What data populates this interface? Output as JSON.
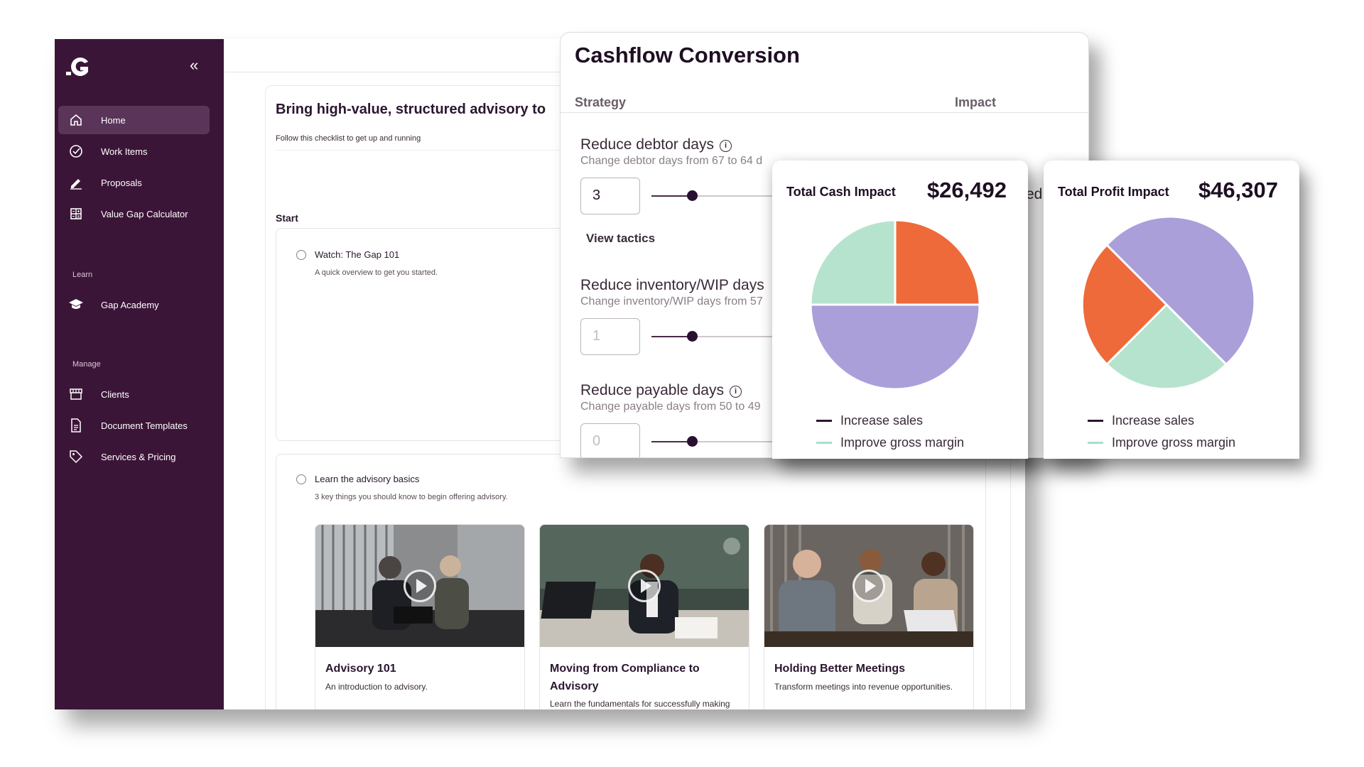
{
  "sidebar": {
    "items": [
      {
        "label": "Home",
        "icon": "home-icon",
        "active": true
      },
      {
        "label": "Work Items",
        "icon": "check-circle-icon"
      },
      {
        "label": "Proposals",
        "icon": "pen-icon"
      },
      {
        "label": "Value Gap Calculator",
        "icon": "calculator-icon"
      }
    ],
    "learn_label": "Learn",
    "learn_items": [
      {
        "label": "Gap Academy",
        "icon": "graduation-cap-icon"
      }
    ],
    "manage_label": "Manage",
    "manage_items": [
      {
        "label": "Clients",
        "icon": "store-icon"
      },
      {
        "label": "Document Templates",
        "icon": "document-icon"
      },
      {
        "label": "Services & Pricing",
        "icon": "tag-icon"
      }
    ]
  },
  "checklist": {
    "headline": "Bring high-value, structured advisory to",
    "subline": "Follow this checklist to get up and running",
    "start_label": "Start",
    "tasks": [
      {
        "title": "Watch: The Gap 101",
        "desc": "A quick overview to get you started."
      },
      {
        "title": "Learn the advisory basics",
        "desc": "3 key things you should know to begin offering advisory."
      }
    ],
    "videos": [
      {
        "title": "Advisory 101",
        "desc": "An introduction to advisory."
      },
      {
        "title": "Moving from Compliance to Advisory",
        "desc": "Learn the fundamentals for successfully making the shift."
      },
      {
        "title": "Holding Better Meetings",
        "desc": "Transform meetings into revenue opportunities."
      }
    ]
  },
  "cashflow": {
    "title": "Cashflow Conversion",
    "col_strategy": "Strategy",
    "col_impact": "Impact",
    "overflow_text": "ed",
    "strategies": [
      {
        "title": "Reduce debtor days",
        "desc": "Change debtor days from 67 to 64 d",
        "value": "3",
        "slider": 0.25
      },
      {
        "title": "Reduce inventory/WIP days",
        "desc": "Change inventory/WIP days from 57",
        "placeholder": "1",
        "slider": 0.25
      },
      {
        "title": "Reduce payable days",
        "desc": "Change payable days from 50 to 49",
        "placeholder": "0",
        "slider": 0.25
      }
    ],
    "view_tactics": "View tactics"
  },
  "impact_cards": [
    {
      "label": "Total Cash Impact",
      "value": "$26,492",
      "legend": [
        {
          "name": "Increase sales",
          "color": "#2b1630"
        },
        {
          "name": "Improve gross margin",
          "color": "#a7dfc7"
        }
      ]
    },
    {
      "label": "Total Profit Impact",
      "value": "$46,307",
      "legend": [
        {
          "name": "Increase sales",
          "color": "#2b1630"
        },
        {
          "name": "Improve gross margin",
          "color": "#a7dfc7"
        }
      ]
    }
  ],
  "colors": {
    "sidebar_bg": "#3b1537",
    "pie_purple": "#ab9fd9",
    "pie_orange": "#ee6a3a",
    "pie_mint": "#b6e3ce"
  }
}
